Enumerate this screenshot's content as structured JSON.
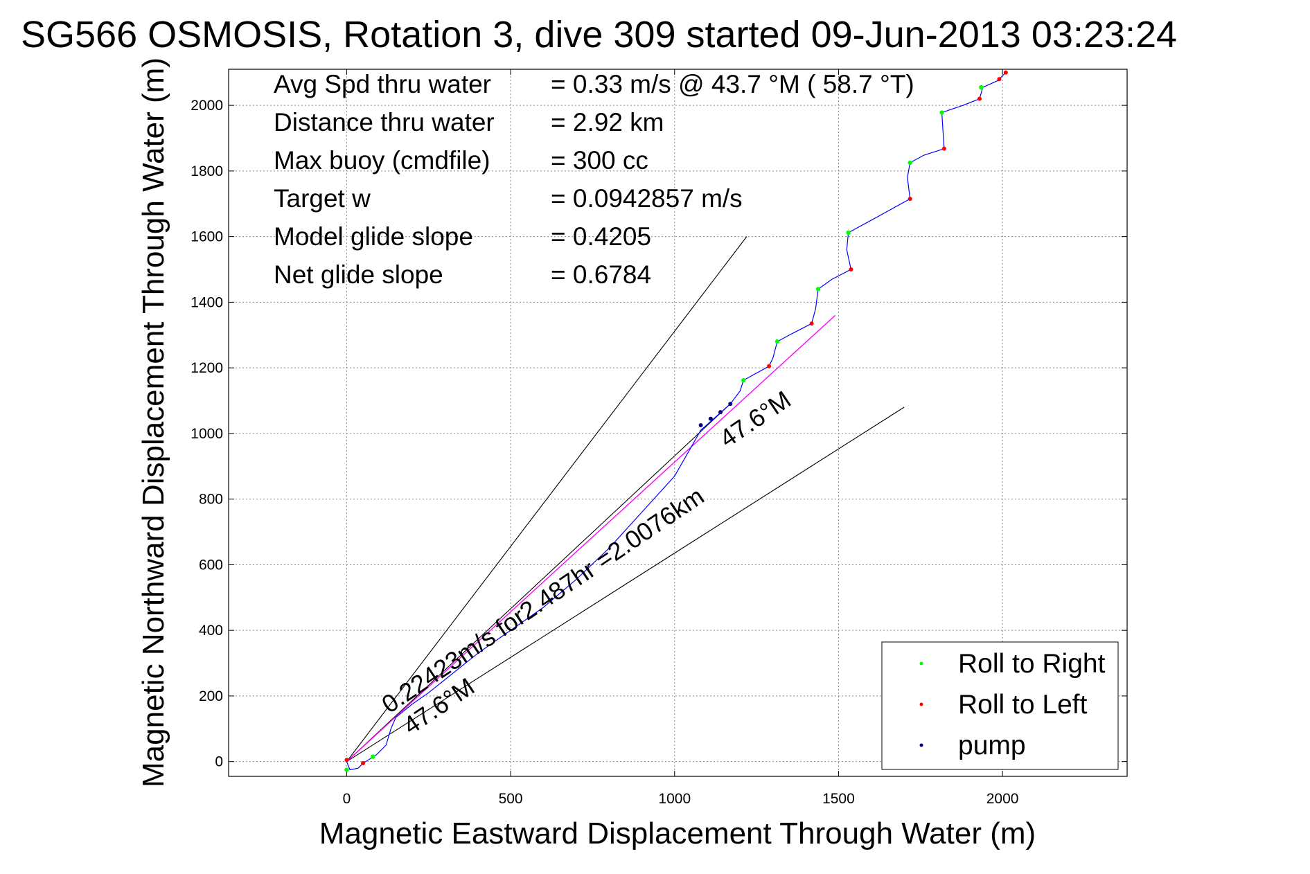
{
  "chart_data": {
    "type": "line",
    "title": "SG566 OSMOSIS, Rotation 3, dive 309 started 09-Jun-2013 03:23:24",
    "xlabel": "Magnetic Eastward Displacement Through Water (m)",
    "ylabel": "Magnetic Northward Displacement Through Water (m)",
    "xlim": [
      -360,
      2380
    ],
    "ylim": [
      -45,
      2110
    ],
    "xticks": [
      0,
      500,
      1000,
      1500,
      2000
    ],
    "yticks": [
      0,
      200,
      400,
      600,
      800,
      1000,
      1200,
      1400,
      1600,
      1800,
      2000
    ],
    "grid": true,
    "legend_position": "bottom-right",
    "legend": [
      {
        "label": "Roll to Right",
        "color": "#00ff00"
      },
      {
        "label": "Roll to Left",
        "color": "#ff0000"
      },
      {
        "label": "pump",
        "color": "#000080"
      }
    ],
    "stats": [
      {
        "label": "Avg Spd thru water",
        "value": "=  0.33 m/s @  43.7 °M ( 58.7 °T)"
      },
      {
        "label": "Distance thru water",
        "value": "=  2.92 km"
      },
      {
        "label": "Max buoy (cmdfile)",
        "value": "= 300 cc"
      },
      {
        "label": "Target w",
        "value": "= 0.0942857 m/s"
      },
      {
        "label": "Model glide slope",
        "value": "= 0.4205"
      },
      {
        "label": "Net glide slope",
        "value": "= 0.6784"
      }
    ],
    "track_color": "#0000ff",
    "mean_color": "#ff00ff",
    "track": [
      {
        "x": 0,
        "y": 0
      },
      {
        "x": 10,
        "y": -25
      },
      {
        "x": 35,
        "y": -20
      },
      {
        "x": 50,
        "y": -5
      },
      {
        "x": 90,
        "y": 20
      },
      {
        "x": 120,
        "y": 50
      },
      {
        "x": 135,
        "y": 100
      },
      {
        "x": 150,
        "y": 135
      },
      {
        "x": 200,
        "y": 175
      },
      {
        "x": 250,
        "y": 210
      },
      {
        "x": 300,
        "y": 250
      },
      {
        "x": 400,
        "y": 330
      },
      {
        "x": 500,
        "y": 400
      },
      {
        "x": 600,
        "y": 470
      },
      {
        "x": 700,
        "y": 555
      },
      {
        "x": 800,
        "y": 650
      },
      {
        "x": 900,
        "y": 760
      },
      {
        "x": 1000,
        "y": 870
      },
      {
        "x": 1080,
        "y": 1010
      },
      {
        "x": 1170,
        "y": 1090
      },
      {
        "x": 1200,
        "y": 1130
      },
      {
        "x": 1210,
        "y": 1162
      },
      {
        "x": 1288,
        "y": 1205
      },
      {
        "x": 1300,
        "y": 1230
      },
      {
        "x": 1313,
        "y": 1280
      },
      {
        "x": 1350,
        "y": 1300
      },
      {
        "x": 1418,
        "y": 1335
      },
      {
        "x": 1430,
        "y": 1380
      },
      {
        "x": 1438,
        "y": 1440
      },
      {
        "x": 1480,
        "y": 1470
      },
      {
        "x": 1538,
        "y": 1500
      },
      {
        "x": 1525,
        "y": 1560
      },
      {
        "x": 1530,
        "y": 1612
      },
      {
        "x": 1600,
        "y": 1650
      },
      {
        "x": 1718,
        "y": 1715
      },
      {
        "x": 1710,
        "y": 1780
      },
      {
        "x": 1718,
        "y": 1825
      },
      {
        "x": 1760,
        "y": 1848
      },
      {
        "x": 1822,
        "y": 1868
      },
      {
        "x": 1818,
        "y": 1930
      },
      {
        "x": 1815,
        "y": 1978
      },
      {
        "x": 1880,
        "y": 2000
      },
      {
        "x": 1930,
        "y": 2020
      },
      {
        "x": 1940,
        "y": 2055
      },
      {
        "x": 1985,
        "y": 2075
      },
      {
        "x": 2010,
        "y": 2100
      }
    ],
    "roll_right_points": [
      {
        "x": 0,
        "y": -25
      },
      {
        "x": 80,
        "y": 15
      },
      {
        "x": 1210,
        "y": 1162
      },
      {
        "x": 1313,
        "y": 1280
      },
      {
        "x": 1438,
        "y": 1440
      },
      {
        "x": 1530,
        "y": 1612
      },
      {
        "x": 1718,
        "y": 1825
      },
      {
        "x": 1815,
        "y": 1978
      },
      {
        "x": 1935,
        "y": 2055
      }
    ],
    "roll_left_points": [
      {
        "x": 0,
        "y": 5
      },
      {
        "x": 50,
        "y": -5
      },
      {
        "x": 1288,
        "y": 1205
      },
      {
        "x": 1418,
        "y": 1335
      },
      {
        "x": 1538,
        "y": 1500
      },
      {
        "x": 1718,
        "y": 1715
      },
      {
        "x": 1822,
        "y": 1868
      },
      {
        "x": 1930,
        "y": 2020
      },
      {
        "x": 1990,
        "y": 2080
      },
      {
        "x": 2010,
        "y": 2100
      }
    ],
    "pump_points": [
      {
        "x": 1080,
        "y": 1025
      },
      {
        "x": 1110,
        "y": 1045
      },
      {
        "x": 1140,
        "y": 1065
      },
      {
        "x": 1170,
        "y": 1090
      }
    ],
    "mean_track": [
      {
        "x": 0,
        "y": 0
      },
      {
        "x": 1490,
        "y": 1360
      }
    ],
    "heading_lines": [
      {
        "x1": 0,
        "y1": 0,
        "x2": 1220,
        "y2": 1600
      },
      {
        "x1": 0,
        "y1": 0,
        "x2": 1700,
        "y2": 1080
      },
      {
        "x1": 0,
        "y1": 0,
        "x2": 1170,
        "y2": 1090
      }
    ],
    "annotations": [
      {
        "text": "0.22423m/s for2.487hr =2.0076km",
        "x": 130,
        "y": 145,
        "angle_deg": 34
      },
      {
        "text": "47.6°M",
        "x": 195,
        "y": 80,
        "angle_deg": 34
      },
      {
        "text": "47.6°M",
        "x": 1160,
        "y": 955,
        "angle_deg": 34
      }
    ]
  }
}
